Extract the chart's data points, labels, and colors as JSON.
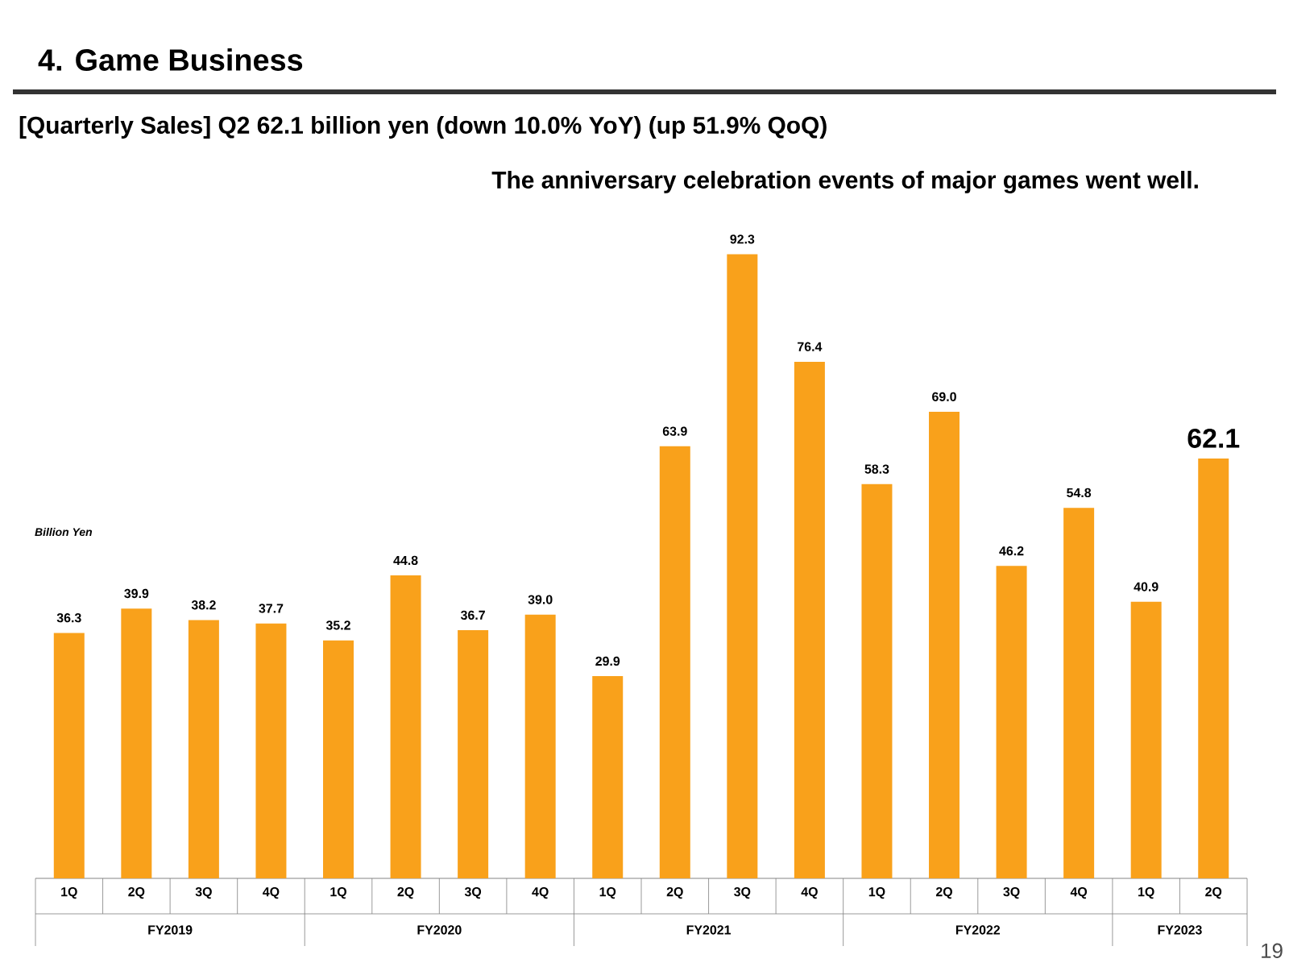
{
  "chart_data": {
    "type": "bar",
    "title": "4.   Game Business",
    "subtitle": "[Quarterly Sales] Q2 **62.1** billion yen (down **10.0**% YoY) (up **51.9**% QoQ)",
    "categories": [
      "1Q",
      "2Q",
      "3Q",
      "4Q",
      "1Q",
      "2Q",
      "3Q",
      "4Q",
      "1Q",
      "2Q",
      "3Q",
      "4Q",
      "1Q",
      "2Q",
      "3Q",
      "4Q",
      "1Q",
      "2Q"
    ],
    "values": [
      36.3,
      39.9,
      38.2,
      37.7,
      35.2,
      44.8,
      36.7,
      39.0,
      29.9,
      63.9,
      92.3,
      76.4,
      58.3,
      69.0,
      46.2,
      54.8,
      40.9,
      62.1
    ],
    "value_labels": [
      "36.3",
      "39.9",
      "38.2",
      "37.7",
      "35.2",
      "44.8",
      "36.7",
      "39.0",
      "29.9",
      "63.9",
      "92.3",
      "76.4",
      "58.3",
      "69.0",
      "46.2",
      "54.8",
      "40.9",
      "62.1"
    ],
    "color": "#f9a11b",
    "annotations": [
      "The anniversary celebration events of major games went well.",
      "Billion Yen",
      "FY2019",
      "FY2020",
      "FY2021",
      "FY2022",
      "FY2023",
      "19"
    ]
  }
}
